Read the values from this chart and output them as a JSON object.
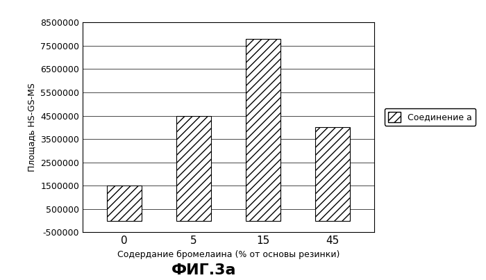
{
  "categories": [
    "0",
    "5",
    "15",
    "45"
  ],
  "values": [
    1500000,
    4500000,
    7800000,
    4000000
  ],
  "xlabel": "Содердание бромелаина (% от основы резинки)",
  "ylabel": "Площадь HS-GS-MS",
  "title": "ФИГ.3а",
  "legend_label": "Соединение а",
  "ylim": [
    -500000,
    8500000
  ],
  "yticks": [
    -500000,
    500000,
    1500000,
    2500000,
    3500000,
    4500000,
    5500000,
    6500000,
    7500000,
    8500000
  ],
  "hatch": "///",
  "background_color": "#ffffff",
  "bar_width": 0.5
}
